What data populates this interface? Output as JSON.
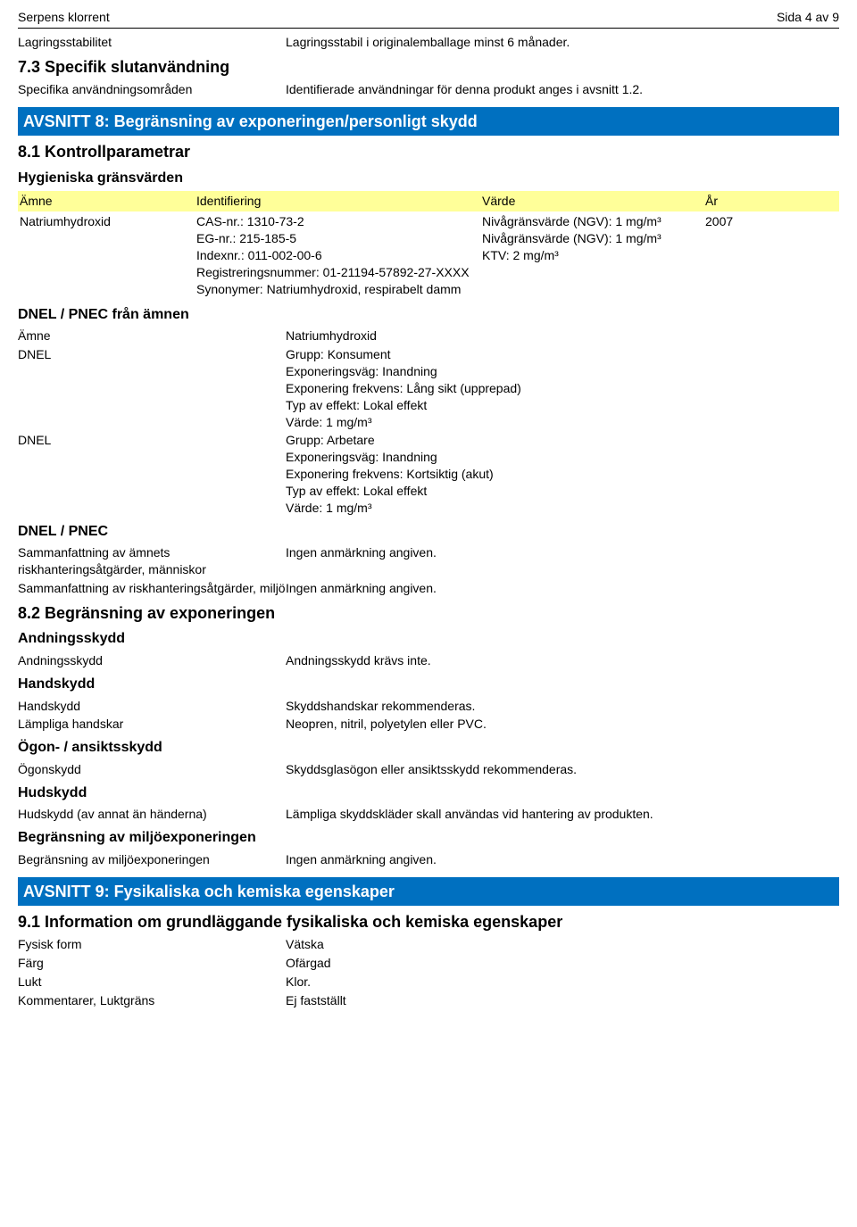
{
  "header": {
    "title": "Serpens klorrent",
    "page": "Sida 4 av 9"
  },
  "storage": {
    "label": "Lagringsstabilitet",
    "value": "Lagringsstabil i originalemballage minst 6 månader."
  },
  "sec7_3": {
    "heading": "7.3 Specifik slutanvändning",
    "row": {
      "label": "Specifika användningsområden",
      "value": "Identifierade användningar för denna produkt anges i avsnitt 1.2."
    }
  },
  "sec8": {
    "banner": "AVSNITT 8: Begränsning av exponeringen/personligt skydd",
    "h8_1": "8.1 Kontrollparametrar",
    "hygien": "Hygieniska gränsvärden",
    "table": {
      "headers": {
        "amne": "Ämne",
        "ident": "Identifiering",
        "varde": "Värde",
        "ar": "År"
      },
      "row": {
        "amne": "Natriumhydroxid",
        "ident": "CAS-nr.: 1310-73-2\nEG-nr.: 215-185-5\nIndexnr.: 011-002-00-6\nRegistreringsnummer: 01-21194-57892-27-XXXX\nSynonymer: Natriumhydroxid, respirabelt damm",
        "varde": "Nivågränsvärde (NGV): 1 mg/m³\nNivågränsvärde (NGV): 1 mg/m³\nKTV: 2 mg/m³",
        "ar": "2007"
      }
    },
    "dnel_from": {
      "heading": "DNEL / PNEC från ämnen",
      "rows": [
        {
          "label": "Ämne",
          "value": "Natriumhydroxid"
        },
        {
          "label": "DNEL",
          "value": "Grupp: Konsument\nExponeringsväg: Inandning\nExponering frekvens: Lång sikt (upprepad)\nTyp av effekt: Lokal effekt\nVärde: 1 mg/m³"
        },
        {
          "label": "DNEL",
          "value": "Grupp: Arbetare\nExponeringsväg: Inandning\nExponering frekvens: Kortsiktig (akut)\nTyp av effekt: Lokal effekt\nVärde: 1 mg/m³"
        }
      ]
    },
    "dnel_pnec": {
      "heading": "DNEL / PNEC",
      "rows": [
        {
          "label": "Sammanfattning av ämnets riskhanteringsåtgärder, människor",
          "value": "Ingen anmärkning angiven."
        },
        {
          "label": "Sammanfattning av riskhanteringsåtgärder, miljö",
          "value": "Ingen anmärkning angiven."
        }
      ]
    },
    "h8_2": "8.2 Begränsning av exponeringen",
    "andning": {
      "heading": "Andningsskydd",
      "row": {
        "label": "Andningsskydd",
        "value": "Andningsskydd krävs inte."
      }
    },
    "hand": {
      "heading": "Handskydd",
      "rows": [
        {
          "label": "Handskydd",
          "value": "Skyddshandskar rekommenderas."
        },
        {
          "label": "Lämpliga handskar",
          "value": "Neopren, nitril, polyetylen eller PVC."
        }
      ]
    },
    "ogon": {
      "heading": "Ögon- / ansiktsskydd",
      "row": {
        "label": "Ögonskydd",
        "value": "Skyddsglasögon eller ansiktsskydd rekommenderas."
      }
    },
    "hud": {
      "heading": "Hudskydd",
      "row": {
        "label": "Hudskydd (av annat än händerna)",
        "value": "Lämpliga skyddskläder skall användas vid hantering av produkten."
      }
    },
    "miljo": {
      "heading": "Begränsning av miljöexponeringen",
      "row": {
        "label": "Begränsning av miljöexponeringen",
        "value": "Ingen anmärkning angiven."
      }
    }
  },
  "sec9": {
    "banner": "AVSNITT 9: Fysikaliska och kemiska egenskaper",
    "h9_1": "9.1 Information om grundläggande fysikaliska och kemiska egenskaper",
    "rows": [
      {
        "label": "Fysisk form",
        "value": "Vätska"
      },
      {
        "label": "Färg",
        "value": "Ofärgad"
      },
      {
        "label": "Lukt",
        "value": "Klor."
      },
      {
        "label": "Kommentarer, Luktgräns",
        "value": "Ej fastställt"
      }
    ]
  }
}
